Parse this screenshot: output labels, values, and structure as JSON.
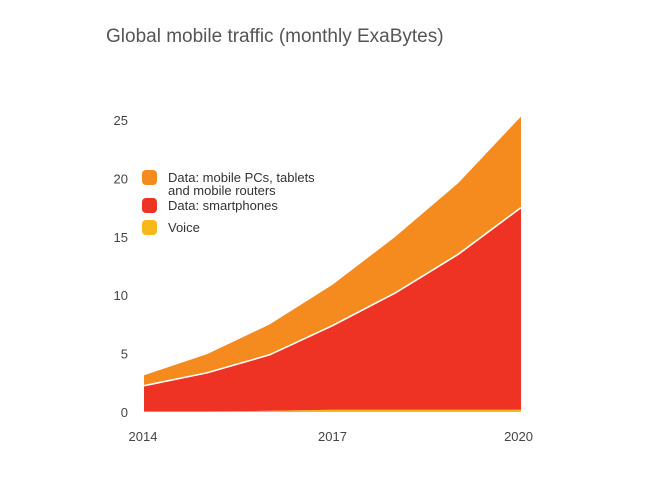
{
  "chart_data": {
    "type": "area",
    "stacked": true,
    "title": "Global mobile traffic (monthly ExaBytes)",
    "xlabel": "",
    "ylabel": "",
    "x": [
      2014,
      2015,
      2016,
      2017,
      2018,
      2019,
      2020
    ],
    "x_tick_labels": [
      "2014",
      "2017",
      "2020"
    ],
    "x_tick_values": [
      2014,
      2017,
      2020
    ],
    "y_ticks": [
      0,
      5,
      10,
      15,
      20,
      25
    ],
    "ylim": [
      0,
      25
    ],
    "grid": false,
    "legend_position": "top-left",
    "series": [
      {
        "name": "Voice",
        "color": "#f7b919",
        "values": [
          0.05,
          0.05,
          0.1,
          0.2,
          0.2,
          0.2,
          0.2
        ]
      },
      {
        "name": "Data: smartphones",
        "color": "#ee3224",
        "values": [
          2.2,
          3.3,
          4.8,
          7.2,
          10.0,
          13.3,
          17.3
        ]
      },
      {
        "name": "Data: mobile PCs, tablets and mobile routers",
        "color": "#f58b1f",
        "values": [
          0.9,
          1.6,
          2.6,
          3.5,
          4.8,
          6.1,
          7.8
        ]
      }
    ],
    "legend": [
      {
        "label_line1": "Data: mobile PCs, tablets",
        "label_line2": "and mobile routers",
        "color": "#f58b1f"
      },
      {
        "label_line1": "Data: smartphones",
        "color": "#ee3224"
      },
      {
        "label_line1": "Voice",
        "color": "#f7b919"
      }
    ]
  }
}
